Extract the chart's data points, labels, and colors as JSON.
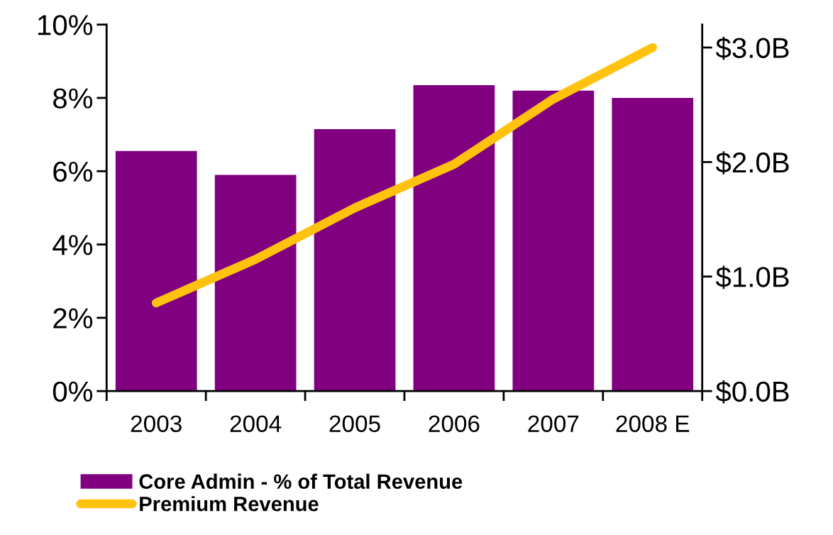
{
  "chart_data": {
    "type": "bar",
    "categories": [
      "2003",
      "2004",
      "2005",
      "2006",
      "2007",
      "2008 E"
    ],
    "series": [
      {
        "name": "Core Admin - % of Total Revenue",
        "color": "#800080",
        "values": [
          6.55,
          5.9,
          7.15,
          8.35,
          8.2,
          8.0
        ]
      },
      {
        "name": "Premium Revenue",
        "type": "line",
        "axis": "y2",
        "color": "#ffc20e",
        "values": [
          0.77,
          1.15,
          1.6,
          1.98,
          2.55,
          3.0
        ]
      }
    ],
    "ylim": [
      0,
      10
    ],
    "yticks": [
      {
        "value": 0,
        "label": "0%"
      },
      {
        "value": 2,
        "label": "2%"
      },
      {
        "value": 4,
        "label": "4%"
      },
      {
        "value": 6,
        "label": "6%"
      },
      {
        "value": 8,
        "label": "8%"
      },
      {
        "value": 10,
        "label": "10%"
      }
    ],
    "y2lim": [
      0,
      3.2
    ],
    "y2ticks": [
      {
        "value": 0,
        "label": "$0.0B"
      },
      {
        "value": 1,
        "label": "$1.0B"
      },
      {
        "value": 2,
        "label": "$2.0B"
      },
      {
        "value": 3,
        "label": "$3.0B"
      }
    ],
    "grid": false,
    "legend": "bottom"
  }
}
